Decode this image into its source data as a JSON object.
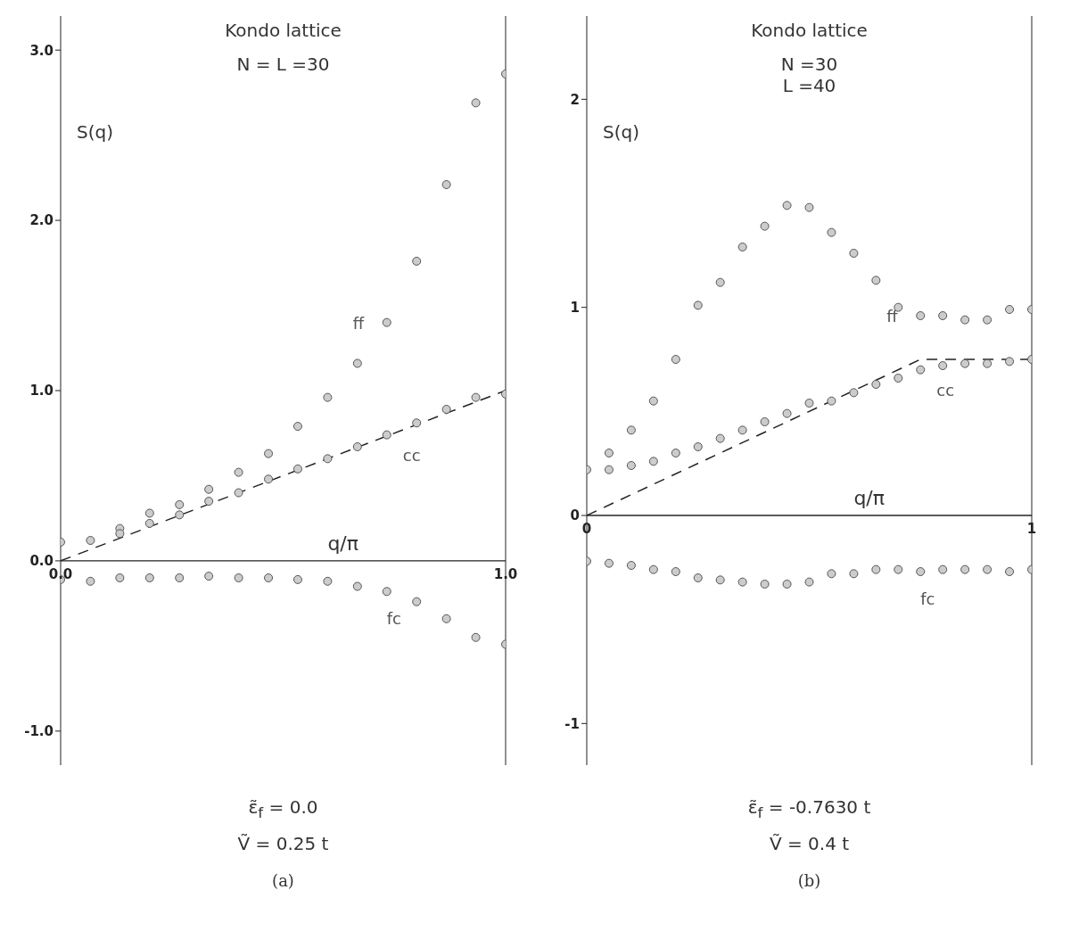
{
  "chart_data": [
    {
      "type": "scatter",
      "title": "Kondo lattice",
      "subtitle": "N = L =30",
      "xlabel": "q/π",
      "ylabel": "S(q)",
      "annotations": [
        "ε̃$_{f}$ = 0.0",
        "Ṽ = 0.25 t",
        "(a)"
      ],
      "x": [
        0,
        0.067,
        0.133,
        0.2,
        0.267,
        0.333,
        0.4,
        0.467,
        0.533,
        0.6,
        0.667,
        0.733,
        0.8,
        0.867,
        0.933,
        1
      ],
      "series": [
        {
          "name": "ff",
          "color": "#555555",
          "values": [
            0.11,
            0.12,
            0.19,
            0.28,
            0.33,
            0.42,
            0.52,
            0.63,
            0.79,
            0.96,
            1.16,
            1.4,
            1.76,
            2.21,
            2.69,
            2.86
          ]
        },
        {
          "name": "cc",
          "color": "#555555",
          "values": [
            null,
            null,
            0.16,
            0.22,
            0.27,
            0.35,
            0.4,
            0.48,
            0.54,
            0.6,
            0.67,
            0.74,
            0.81,
            0.89,
            0.96,
            0.98
          ]
        },
        {
          "name": "fc",
          "color": "#555555",
          "values": [
            -0.11,
            -0.12,
            -0.1,
            -0.1,
            -0.1,
            -0.09,
            -0.1,
            -0.1,
            -0.11,
            -0.12,
            -0.15,
            -0.18,
            -0.24,
            -0.34,
            -0.45,
            -0.49
          ]
        },
        {
          "type": "line",
          "color": "#222222",
          "line_style": "dashed",
          "marker": "none",
          "x": [
            0,
            1
          ],
          "values": [
            0,
            1
          ]
        }
      ],
      "xlim": [
        0,
        1
      ],
      "ylim": [
        -1.2,
        3.2
      ],
      "xticks": [
        {
          "value": 0,
          "label": "0.0"
        },
        {
          "value": 1,
          "label": "1.0"
        }
      ],
      "yticks": [
        {
          "value": -1,
          "label": "-1.0"
        },
        {
          "value": 0,
          "label": "0.0"
        },
        {
          "value": 1,
          "label": "1.0"
        },
        {
          "value": 2,
          "label": "2.0"
        },
        {
          "value": 3,
          "label": "3.0"
        }
      ],
      "marker": "circle",
      "grid": false,
      "legend": false
    },
    {
      "type": "scatter",
      "title": "Kondo lattice",
      "subtitle": "N =30\nL =40",
      "xlabel": "q/π",
      "ylabel": "S(q)",
      "annotations": [
        "ε̃$_{f}$ = -0.7630 t",
        "Ṽ = 0.4 t",
        "(b)"
      ],
      "x": [
        0,
        0.05,
        0.1,
        0.15,
        0.2,
        0.25,
        0.3,
        0.35,
        0.4,
        0.45,
        0.5,
        0.55,
        0.6,
        0.65,
        0.7,
        0.75,
        0.8,
        0.85,
        0.9,
        0.95,
        1
      ],
      "series": [
        {
          "name": "ff",
          "color": "#555555",
          "values": [
            0.22,
            0.3,
            0.41,
            0.55,
            0.75,
            1.01,
            1.12,
            1.29,
            1.39,
            1.49,
            1.48,
            1.36,
            1.26,
            1.13,
            1.0,
            0.96,
            0.96,
            0.94,
            0.94,
            0.99,
            0.99
          ]
        },
        {
          "name": "cc",
          "color": "#555555",
          "values": [
            null,
            0.22,
            0.24,
            0.26,
            0.3,
            0.33,
            0.37,
            0.41,
            0.45,
            0.49,
            0.54,
            0.55,
            0.59,
            0.63,
            0.66,
            0.7,
            0.72,
            0.73,
            0.73,
            0.74,
            0.75
          ]
        },
        {
          "name": "fc",
          "color": "#555555",
          "values": [
            -0.22,
            -0.23,
            -0.24,
            -0.26,
            -0.27,
            -0.3,
            -0.31,
            -0.32,
            -0.33,
            -0.33,
            -0.32,
            -0.28,
            -0.28,
            -0.26,
            -0.26,
            -0.27,
            -0.26,
            -0.26,
            -0.26,
            -0.27,
            -0.26
          ]
        },
        {
          "type": "line",
          "color": "#222222",
          "line_style": "dashed",
          "marker": "none",
          "x": [
            0,
            0.75,
            1
          ],
          "values": [
            0,
            0.75,
            0.75
          ]
        }
      ],
      "xlim": [
        0,
        1
      ],
      "ylim": [
        -1.2,
        2.4
      ],
      "xticks": [
        0,
        1
      ],
      "yticks": [
        -1,
        0,
        1,
        2
      ],
      "marker": "circle",
      "grid": false,
      "legend": false
    }
  ]
}
